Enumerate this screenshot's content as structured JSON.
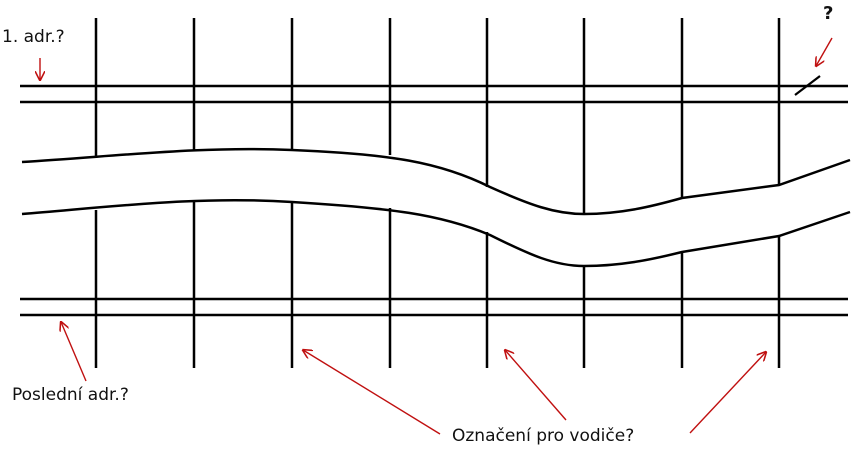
{
  "labels": {
    "first_address": "1. adr.?",
    "question_mark": "?",
    "last_address": "Poslední adr.?",
    "wire_designation": "Označení pro vodiče?"
  },
  "colors": {
    "line": "#000000",
    "annotation": "#c01010",
    "text": "#111111",
    "background": "#ffffff"
  }
}
